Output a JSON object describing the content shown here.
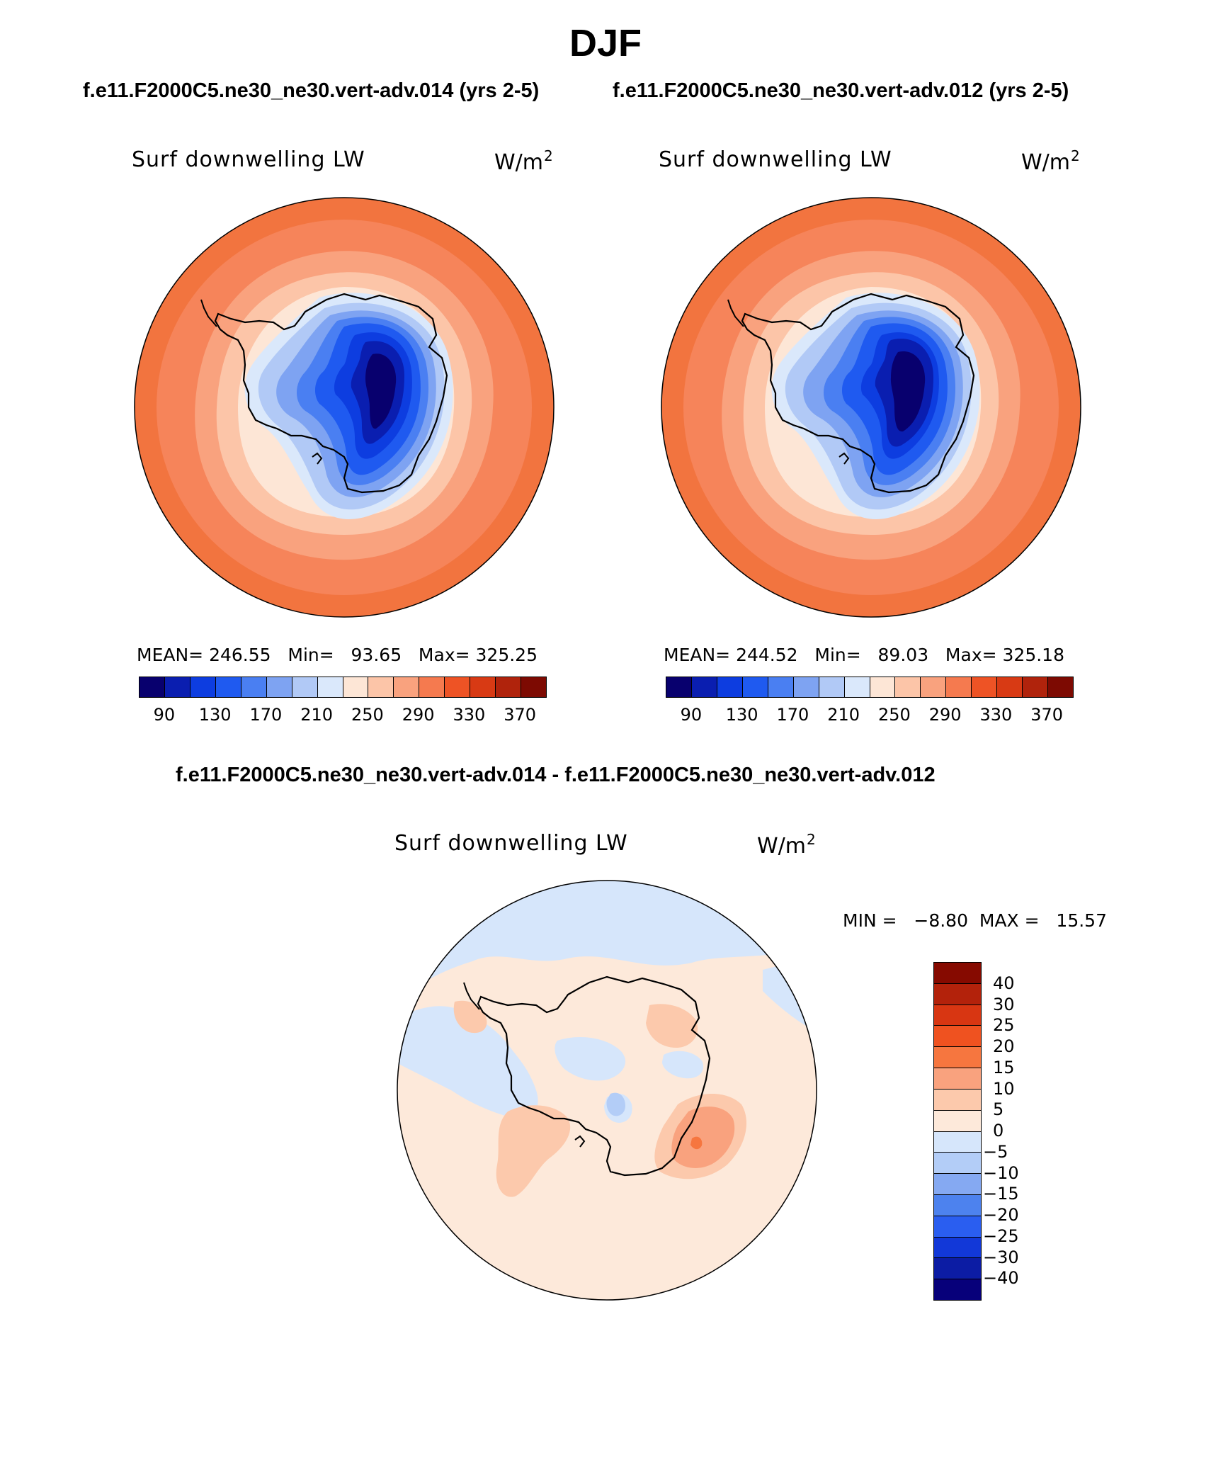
{
  "title": "DJF",
  "case_a": "f.e11.F2000C5.ne30_ne30.vert-adv.014 (yrs 2-5)",
  "case_b": "f.e11.F2000C5.ne30_ne30.vert-adv.012 (yrs 2-5)",
  "diff_title": "f.e11.F2000C5.ne30_ne30.vert-adv.014 - f.e11.F2000C5.ne30_ne30.vert-adv.012",
  "panel_a": {
    "label": "Surf downwelling LW",
    "units": "W/m",
    "units_exp": "2",
    "stats": "MEAN= 246.55   Min=   93.65   Max= 325.25"
  },
  "panel_b": {
    "label": "Surf downwelling LW",
    "units": "W/m",
    "units_exp": "2",
    "stats": "MEAN= 244.52   Min=   89.03   Max= 325.18"
  },
  "panel_diff": {
    "label": "Surf downwelling LW",
    "units": "W/m",
    "units_exp": "2",
    "stats": "MIN =   −8.80  MAX =   15.57"
  },
  "abs_colorbar": {
    "ticks": [
      "90",
      "130",
      "170",
      "210",
      "250",
      "290",
      "330",
      "370"
    ],
    "colors": [
      "#08006e",
      "#0a1eb0",
      "#0d3de0",
      "#1f5af0",
      "#4a7ff2",
      "#7ea3f2",
      "#b1c9f6",
      "#dae8fb",
      "#fde6d6",
      "#fcc5a8",
      "#f9a27e",
      "#f57a4f",
      "#ee5325",
      "#d83a14",
      "#b0230c",
      "#7d0a02"
    ]
  },
  "diff_colorbar": {
    "ticks": [
      "40",
      "30",
      "25",
      "20",
      "15",
      "10",
      "5",
      "0",
      "−5",
      "−10",
      "−15",
      "−20",
      "−25",
      "−30",
      "−40"
    ],
    "colors_top_to_bottom": [
      "#860a00",
      "#b3220b",
      "#d83612",
      "#ef5220",
      "#f6763f",
      "#f9a27e",
      "#fcc9ac",
      "#fde9da",
      "#d6e6fb",
      "#b3cdf7",
      "#85a9f2",
      "#4d82ee",
      "#2a5ef0",
      "#1238d8",
      "#0c1ca4",
      "#07007a"
    ]
  }
}
